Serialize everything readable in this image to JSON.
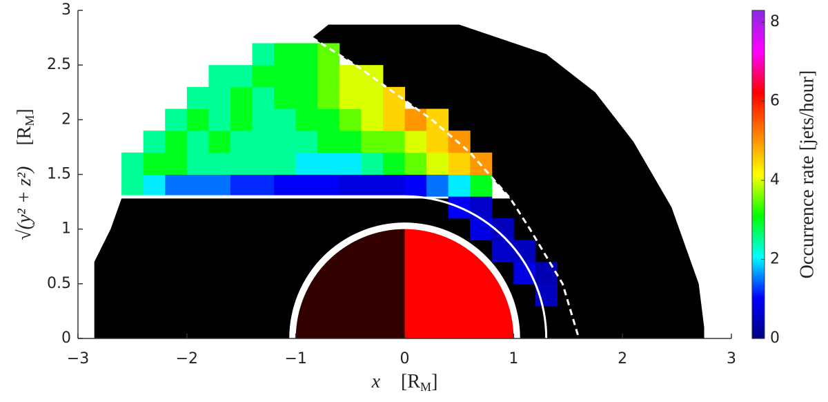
{
  "chart_data": {
    "type": "heatmap",
    "xlabel": [
      "x",
      "[R",
      "M",
      "]"
    ],
    "ylabel": [
      "√(y² + z²)",
      "[R",
      "M",
      "]"
    ],
    "colorbar_label": "Occurrence rate [jets/hour]",
    "xlim": [
      -3,
      3
    ],
    "ylim": [
      0,
      3
    ],
    "xticks": [
      {
        "value": -3,
        "label": "−3"
      },
      {
        "value": -2,
        "label": "−2"
      },
      {
        "value": -1,
        "label": "−1"
      },
      0,
      1,
      2,
      3
    ],
    "yticks": [
      0,
      0.5,
      1,
      1.5,
      2,
      2.5,
      3
    ],
    "clim": [
      0,
      8.3
    ],
    "cticks": [
      0,
      2,
      4,
      6,
      8
    ],
    "colormap": [
      "#00007f",
      "#0000ff",
      "#00ffff",
      "#00ff00",
      "#ffff00",
      "#ff8000",
      "#ff0000",
      "#ff00ff",
      "#8a2be2"
    ],
    "x_bins": [
      -2.6,
      -2.4,
      -2.2,
      -2.0,
      -1.8,
      -1.6,
      -1.4,
      -1.2,
      -1.0,
      -0.8,
      -0.6,
      -0.4,
      -0.2,
      0.0,
      0.2,
      0.4,
      0.6,
      0.8,
      1.0,
      1.2,
      1.4,
      1.6
    ],
    "y_bins": [
      0.3,
      0.5,
      0.7,
      0.9,
      1.1,
      1.3,
      1.5,
      1.7,
      1.9,
      2.1,
      2.3,
      2.5,
      2.7
    ],
    "values": [
      [
        null,
        null,
        null,
        null,
        null,
        null,
        null,
        null,
        null,
        null,
        null,
        null,
        null,
        null,
        null,
        null,
        null,
        null,
        null,
        0.5,
        null
      ],
      [
        null,
        null,
        null,
        null,
        null,
        null,
        null,
        null,
        null,
        null,
        null,
        null,
        null,
        null,
        null,
        null,
        null,
        null,
        0.8,
        0.4,
        null
      ],
      [
        null,
        null,
        null,
        null,
        null,
        null,
        null,
        null,
        null,
        null,
        null,
        null,
        null,
        null,
        null,
        null,
        null,
        0.6,
        0.5,
        null,
        null
      ],
      [
        null,
        null,
        null,
        null,
        null,
        null,
        null,
        null,
        null,
        null,
        null,
        null,
        null,
        null,
        null,
        null,
        0.8,
        0.5,
        null,
        null,
        null
      ],
      [
        null,
        null,
        null,
        null,
        null,
        null,
        null,
        null,
        null,
        null,
        null,
        null,
        null,
        null,
        null,
        1.0,
        0.6,
        null,
        null,
        null,
        null
      ],
      [
        2.5,
        2,
        1.5,
        1.5,
        1.5,
        1.2,
        1.2,
        1,
        1,
        1,
        0.8,
        0.8,
        0.8,
        1,
        1.5,
        2,
        3,
        null,
        null,
        null,
        null
      ],
      [
        2.5,
        3,
        3,
        2.5,
        2.5,
        2.5,
        2.5,
        2.5,
        2,
        2,
        2,
        2.5,
        3,
        3.5,
        4,
        4.5,
        5,
        null,
        null,
        null,
        null
      ],
      [
        null,
        2.5,
        3,
        2.5,
        3,
        2.5,
        2.5,
        2.5,
        2.5,
        3,
        3,
        3.5,
        3.5,
        4,
        4.5,
        5,
        null,
        null,
        null,
        null,
        null
      ],
      [
        null,
        null,
        2.5,
        3,
        2.5,
        3,
        2.5,
        2.5,
        3,
        3,
        3.5,
        4,
        4.5,
        5,
        4.5,
        null,
        null,
        null,
        null,
        null,
        null
      ],
      [
        null,
        null,
        null,
        2.5,
        2.5,
        3,
        2.5,
        3,
        3,
        3.5,
        4,
        4,
        4.5,
        null,
        null,
        null,
        null,
        null,
        null,
        null,
        null
      ],
      [
        null,
        null,
        null,
        null,
        2.5,
        2.5,
        3,
        3,
        3,
        3.5,
        4,
        4,
        null,
        null,
        null,
        null,
        null,
        null,
        null,
        null,
        null
      ],
      [
        null,
        null,
        null,
        null,
        null,
        null,
        2.5,
        3,
        3,
        3.5,
        null,
        null,
        null,
        null,
        null,
        null,
        null,
        null,
        null,
        null,
        null
      ]
    ]
  }
}
